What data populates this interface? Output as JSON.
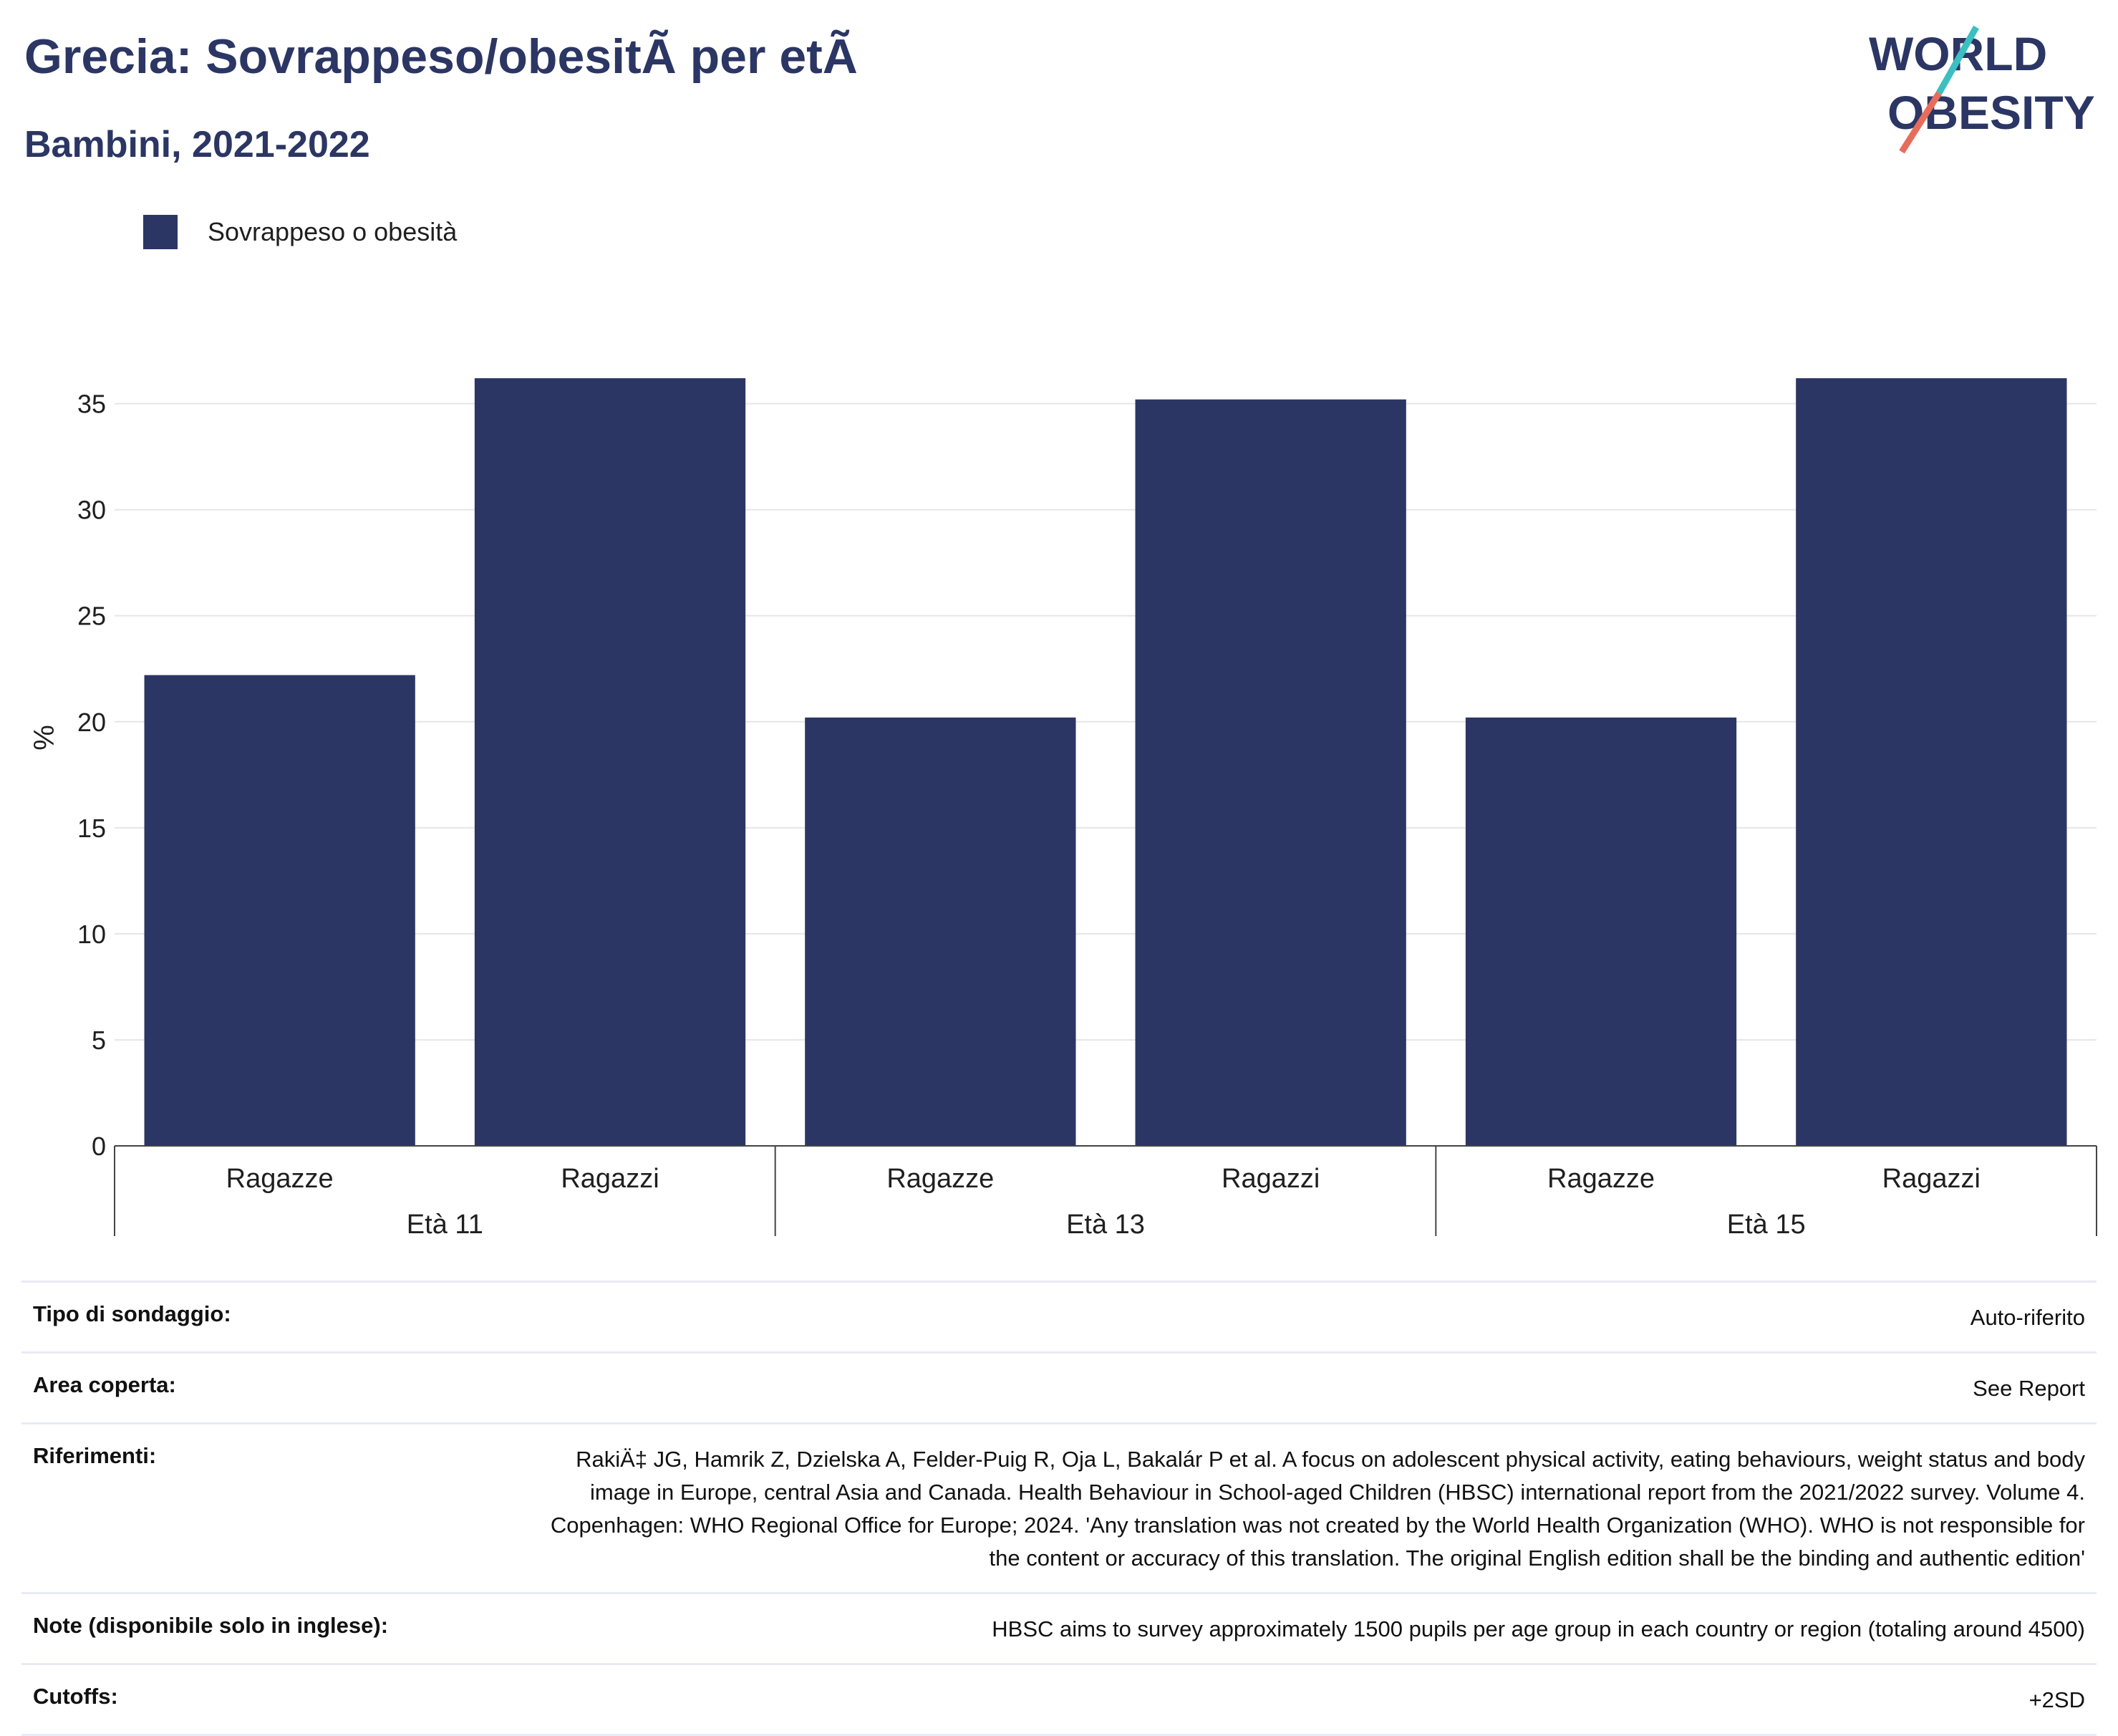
{
  "header": {
    "title": "Grecia: Sovrappeso/obesitÃ  per etÃ ",
    "subtitle": "Bambini, 2021-2022"
  },
  "logo": {
    "line1": "WORLD",
    "line2": "OBESITY"
  },
  "legend": {
    "label": "Sovrappeso o obesità",
    "color": "#2b3664"
  },
  "chart_data": {
    "type": "bar",
    "ylabel": "%",
    "ylim": [
      0,
      38.5
    ],
    "yticks": [
      0,
      5,
      10,
      15,
      20,
      25,
      30,
      35
    ],
    "grid": true,
    "legend_position": "top-left",
    "bar_color": "#2b3664",
    "groups": [
      "Età 11",
      "Età 13",
      "Età 15"
    ],
    "categories": [
      "Ragazze",
      "Ragazzi",
      "Ragazze",
      "Ragazzi",
      "Ragazze",
      "Ragazzi"
    ],
    "series": [
      {
        "name": "Sovrappeso o obesità",
        "values": [
          22.2,
          36.2,
          20.2,
          35.2,
          20.2,
          36.2
        ]
      }
    ]
  },
  "metadata": {
    "rows": [
      {
        "label": "Tipo di sondaggio:",
        "value": "Auto-riferito"
      },
      {
        "label": "Area coperta:",
        "value": "See Report"
      },
      {
        "label": "Riferimenti:",
        "value": "RakiÄ‡ JG, Hamrik Z, Dzielska A, Felder-Puig R, Oja L, Bakalár P et al. A focus on adolescent physical activity, eating behaviours, weight status and body image in Europe, central Asia and Canada. Health Behaviour in School-aged Children (HBSC) international report from the 2021/2022 survey. Volume 4. Copenhagen: WHO Regional Office for Europe; 2024. 'Any translation was not created by the World Health Organization (WHO). WHO is not responsible for the content or accuracy of this translation. The original English edition shall be the binding and authentic edition'"
      },
      {
        "label": "Note (disponibile solo in inglese):",
        "value": "HBSC aims to survey approximately 1500 pupils per age group in each country or region (totaling around 4500)"
      },
      {
        "label": "Cutoffs:",
        "value": "+2SD"
      }
    ]
  }
}
